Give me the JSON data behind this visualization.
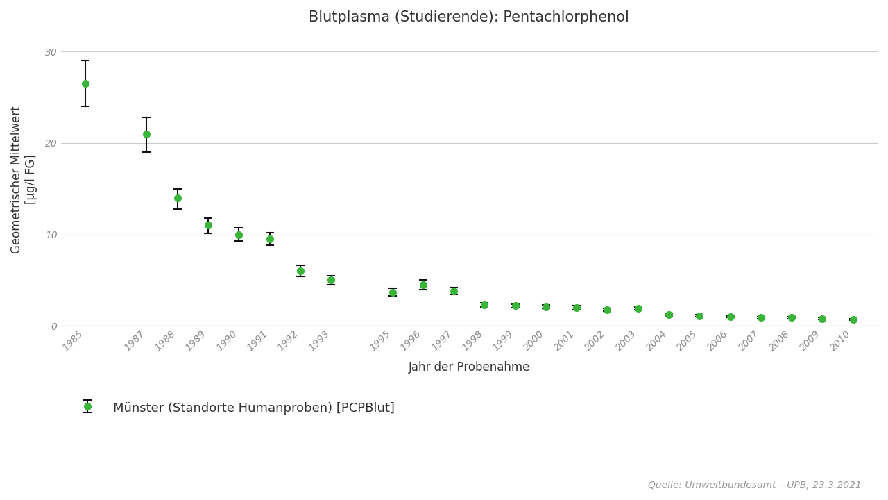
{
  "title": "Blutplasma (Studierende): Pentachlorphenol",
  "xlabel": "Jahr der Probenahme",
  "ylabel": "Geometrischer Mittelwert\n[µg/l FG]",
  "legend_label": "Münster (Standorte Humanproben) [PCPBlut]",
  "source_text": "Quelle: Umweltbundesamt – UPB, 23.3.2021",
  "years": [
    1985,
    1987,
    1988,
    1989,
    1990,
    1991,
    1992,
    1993,
    1995,
    1996,
    1997,
    1998,
    1999,
    2000,
    2001,
    2002,
    2003,
    2004,
    2005,
    2006,
    2007,
    2008,
    2009,
    2010
  ],
  "values": [
    26.5,
    21.0,
    14.0,
    11.0,
    10.0,
    9.5,
    6.0,
    5.0,
    3.7,
    4.5,
    3.8,
    2.3,
    2.2,
    2.1,
    2.0,
    1.8,
    1.9,
    1.2,
    1.1,
    1.0,
    0.9,
    0.9,
    0.8,
    0.7
  ],
  "yerr_upper": [
    2.5,
    1.8,
    1.0,
    0.8,
    0.7,
    0.7,
    0.6,
    0.5,
    0.4,
    0.5,
    0.4,
    0.2,
    0.2,
    0.2,
    0.2,
    0.15,
    0.15,
    0.12,
    0.12,
    0.1,
    0.1,
    0.1,
    0.1,
    0.08
  ],
  "yerr_lower": [
    2.5,
    2.0,
    1.2,
    0.9,
    0.7,
    0.7,
    0.6,
    0.5,
    0.4,
    0.5,
    0.4,
    0.2,
    0.2,
    0.2,
    0.2,
    0.15,
    0.15,
    0.12,
    0.12,
    0.1,
    0.1,
    0.1,
    0.1,
    0.08
  ],
  "line_color": "#3ab53a",
  "marker_color": "#3ab53a",
  "marker_style": "o",
  "marker_size": 7,
  "line_width": 2.2,
  "bg_color": "#ffffff",
  "grid_color": "#cccccc",
  "ylim": [
    0,
    32
  ],
  "yticks": [
    0,
    10,
    20,
    30
  ],
  "title_fontsize": 15,
  "axis_label_fontsize": 12,
  "tick_fontsize": 10,
  "legend_fontsize": 13,
  "source_fontsize": 10
}
